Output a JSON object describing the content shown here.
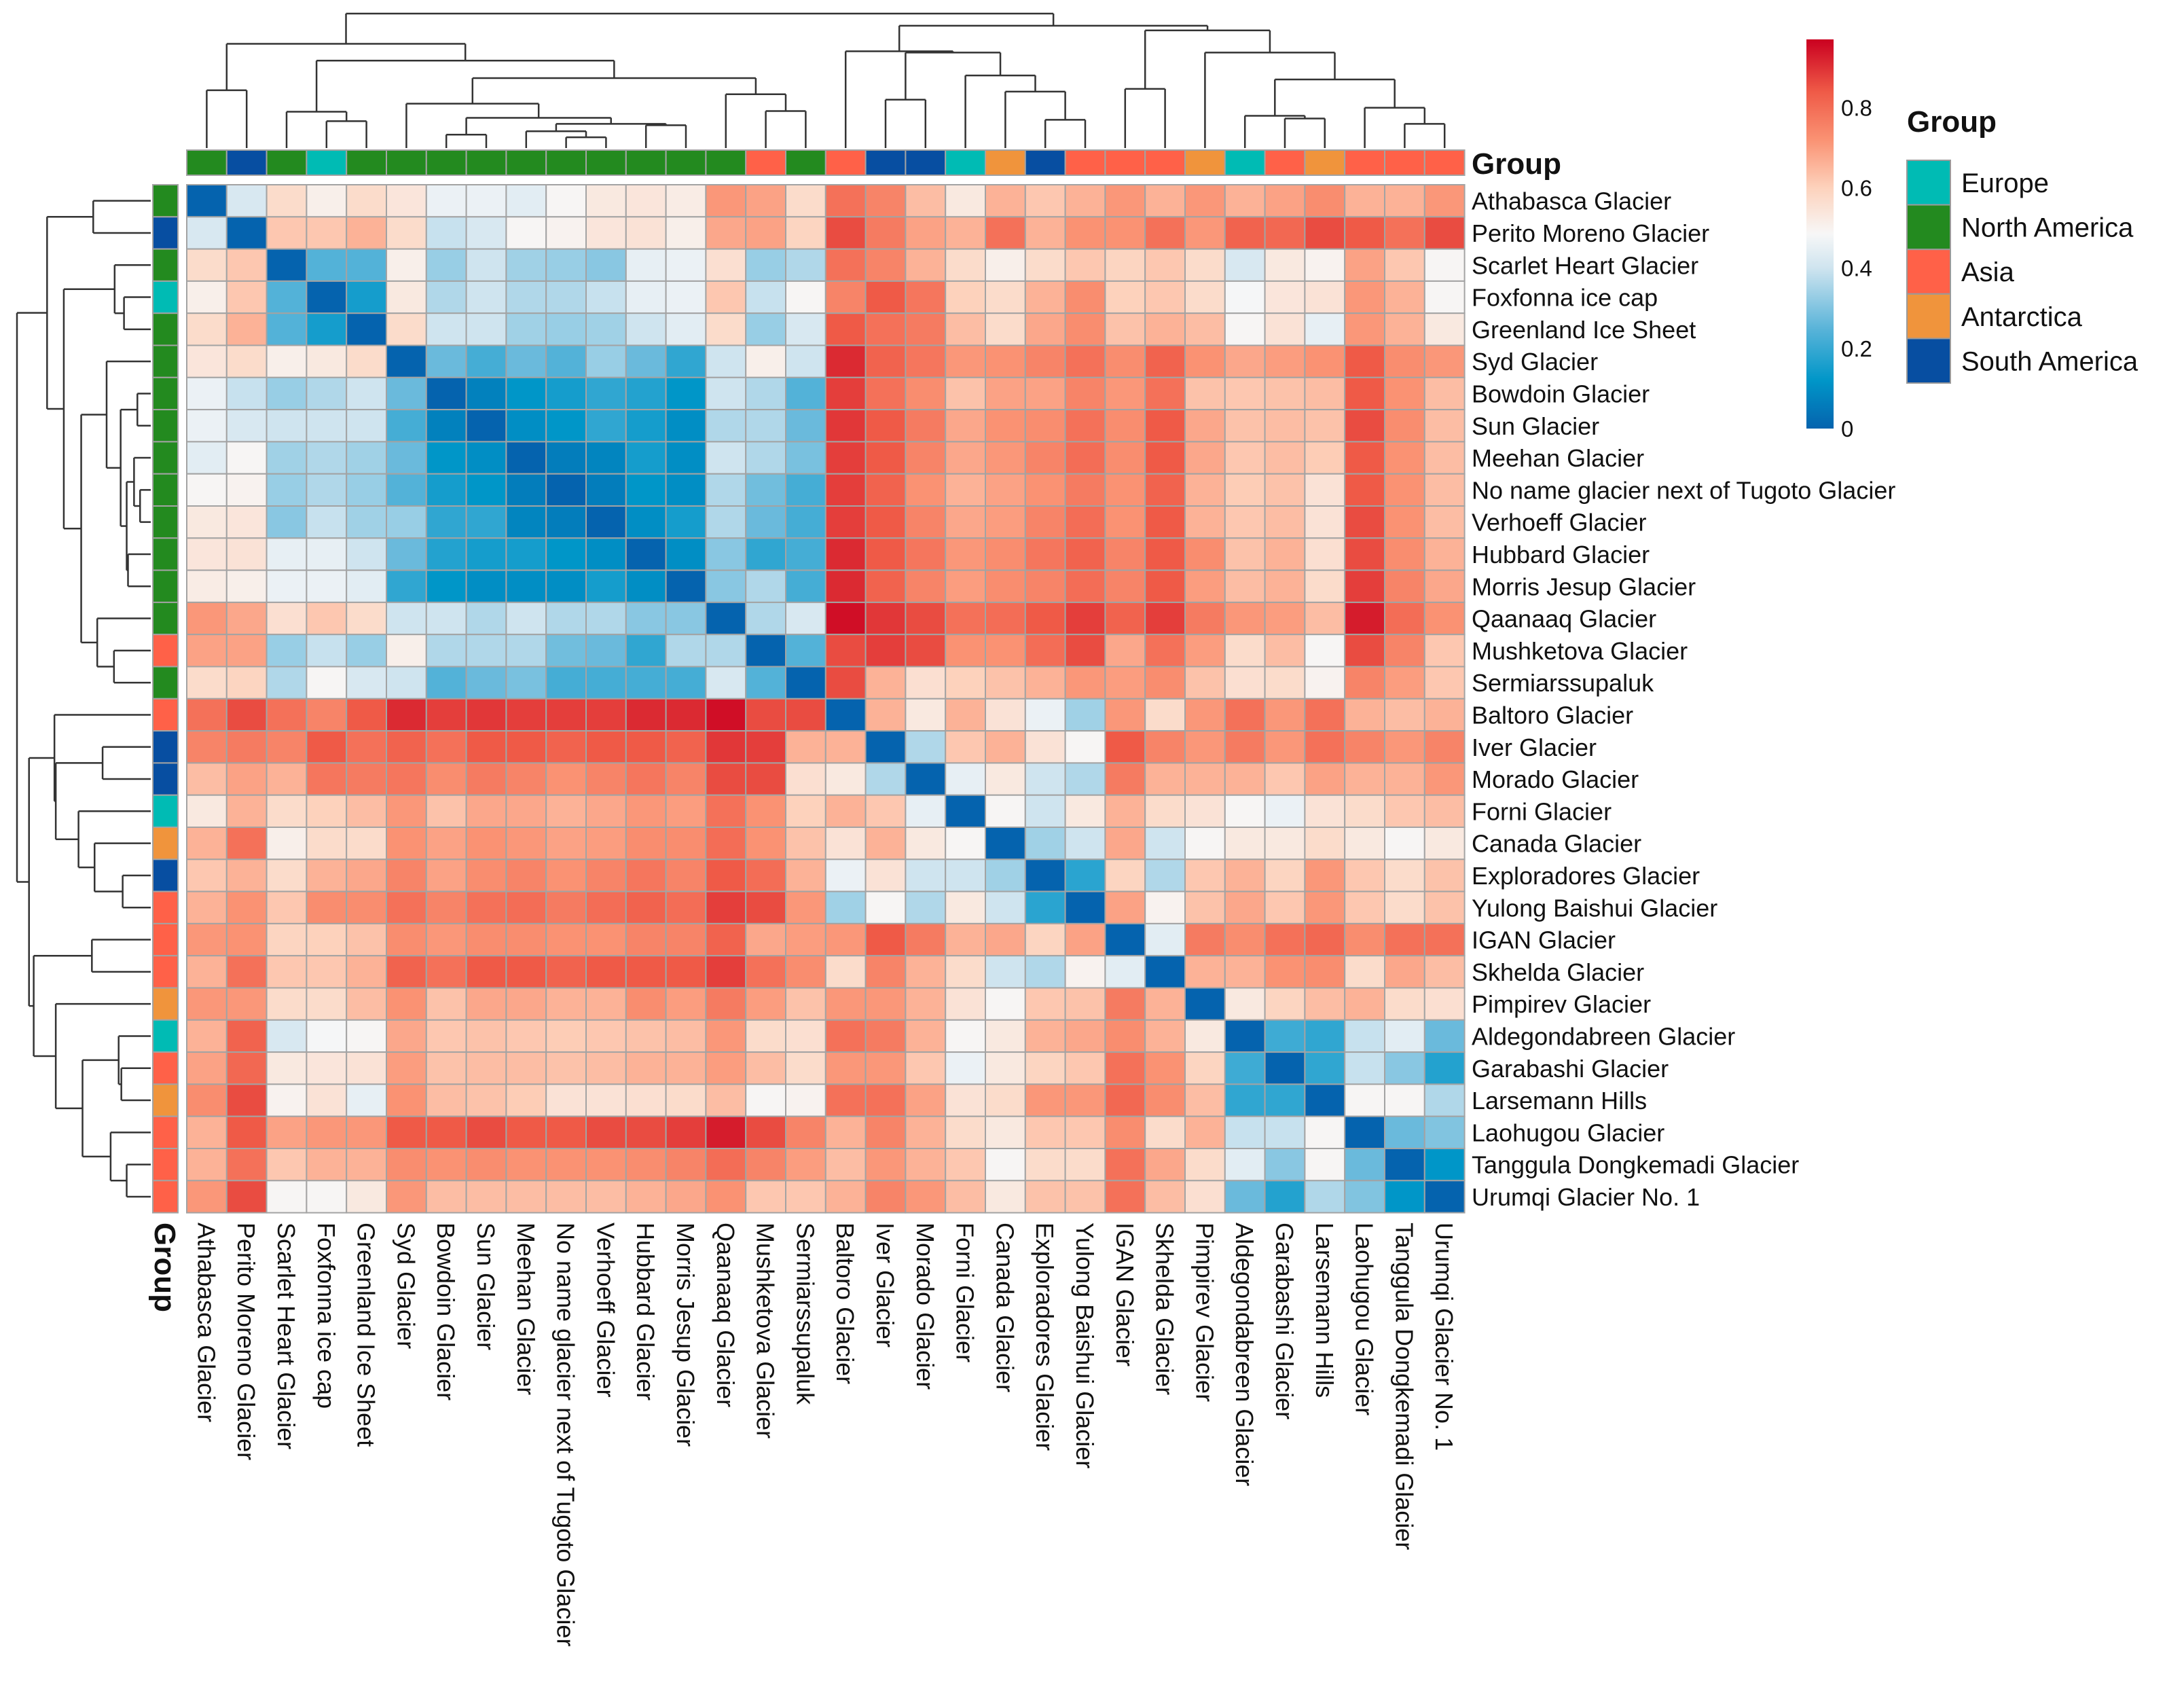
{
  "chart_data": {
    "type": "heatmap",
    "title": "",
    "annotation_title": "Group",
    "row_labels": [
      "Athabasca Glacier",
      "Perito Moreno Glacier",
      "Scarlet Heart Glacier",
      "Foxfonna ice cap",
      "Greenland Ice Sheet",
      "Syd Glacier",
      "Bowdoin Glacier",
      "Sun Glacier",
      "Meehan Glacier",
      "No name glacier next of Tugoto Glacier",
      "Verhoeff Glacier",
      "Hubbard Glacier",
      "Morris Jesup Glacier",
      "Qaanaaq Glacier",
      "Mushketova Glacier",
      "Sermiarssupaluk",
      "Baltoro Glacier",
      "Iver Glacier",
      "Morado Glacier",
      "Forni Glacier",
      "Canada Glacier",
      "Exploradores Glacier",
      "Yulong Baishui Glacier",
      "IGAN Glacier",
      "Skhelda Glacier",
      "Pimpirev Glacier",
      "Aldegondabreen Glacier",
      "Garabashi Glacier",
      "Larsemann Hills",
      "Laohugou Glacier",
      "Tanggula Dongkemadi Glacier",
      "Urumqi Glacier No. 1"
    ],
    "col_labels": [
      "Athabasca Glacier",
      "Perito Moreno Glacier",
      "Scarlet Heart Glacier",
      "Foxfonna ice cap",
      "Greenland Ice Sheet",
      "Syd Glacier",
      "Bowdoin Glacier",
      "Sun Glacier",
      "Meehan Glacier",
      "No name glacier next of Tugoto Glacier",
      "Verhoeff Glacier",
      "Hubbard Glacier",
      "Morris Jesup Glacier",
      "Qaanaaq Glacier",
      "Mushketova Glacier",
      "Sermiarssupaluk",
      "Baltoro Glacier",
      "Iver Glacier",
      "Morado Glacier",
      "Forni Glacier",
      "Canada Glacier",
      "Exploradores Glacier",
      "Yulong Baishui Glacier",
      "IGAN Glacier",
      "Skhelda Glacier",
      "Pimpirev Glacier",
      "Aldegondabreen Glacier",
      "Garabashi Glacier",
      "Larsemann Hills",
      "Laohugou Glacier",
      "Tanggula Dongkemadi Glacier",
      "Urumqi Glacier No. 1"
    ],
    "groups": [
      "North America",
      "South America",
      "North America",
      "Europe",
      "North America",
      "North America",
      "North America",
      "North America",
      "North America",
      "North America",
      "North America",
      "North America",
      "North America",
      "North America",
      "Asia",
      "North America",
      "Asia",
      "South America",
      "South America",
      "Europe",
      "Antarctica",
      "South America",
      "Asia",
      "Asia",
      "Asia",
      "Antarctica",
      "Europe",
      "Asia",
      "Antarctica",
      "Asia",
      "Asia",
      "Asia"
    ],
    "legend": [
      {
        "label": "Europe",
        "color": "#00bbb4"
      },
      {
        "label": "North America",
        "color": "#238a1f"
      },
      {
        "label": "Asia",
        "color": "#ff6148"
      },
      {
        "label": "Antarctica",
        "color": "#f0943c"
      },
      {
        "label": "South America",
        "color": "#074ea1"
      }
    ],
    "colorbar": {
      "ticks": [
        "0",
        "0.2",
        "0.4",
        "0.6",
        "0.8"
      ],
      "tick_values": [
        0,
        0.2,
        0.4,
        0.6,
        0.8
      ],
      "range": [
        0,
        0.97
      ],
      "colors": [
        "#0563ae",
        "#0096c8",
        "#5ab4d9",
        "#cfe4ef",
        "#f7f7f7",
        "#fdd2bc",
        "#fa9273",
        "#ef5a47",
        "#ca0020"
      ],
      "stops": [
        0,
        0.12,
        0.25,
        0.4,
        0.485,
        0.6,
        0.72,
        0.84,
        0.97
      ]
    },
    "dendrogram": {
      "rows": true,
      "cols": true
    },
    "values": [
      [
        0,
        0.42,
        0.57,
        0.51,
        0.57,
        0.54,
        0.46,
        0.46,
        0.44,
        0.49,
        0.53,
        0.54,
        0.52,
        0.71,
        0.69,
        0.57,
        0.79,
        0.75,
        0.64,
        0.53,
        0.66,
        0.62,
        0.66,
        0.71,
        0.66,
        0.71,
        0.66,
        0.69,
        0.73,
        0.66,
        0.66,
        0.71
      ],
      [
        0.42,
        0,
        0.62,
        0.62,
        0.66,
        0.57,
        0.39,
        0.42,
        0.49,
        0.5,
        0.54,
        0.55,
        0.51,
        0.68,
        0.69,
        0.59,
        0.86,
        0.77,
        0.69,
        0.66,
        0.79,
        0.66,
        0.72,
        0.72,
        0.79,
        0.71,
        0.82,
        0.81,
        0.86,
        0.84,
        0.79,
        0.86
      ],
      [
        0.57,
        0.62,
        0,
        0.24,
        0.24,
        0.51,
        0.33,
        0.4,
        0.34,
        0.33,
        0.31,
        0.45,
        0.46,
        0.56,
        0.33,
        0.36,
        0.79,
        0.75,
        0.66,
        0.57,
        0.51,
        0.57,
        0.62,
        0.59,
        0.62,
        0.57,
        0.42,
        0.53,
        0.5,
        0.69,
        0.62,
        0.49
      ],
      [
        0.51,
        0.62,
        0.24,
        0,
        0.15,
        0.53,
        0.36,
        0.4,
        0.36,
        0.36,
        0.39,
        0.45,
        0.46,
        0.62,
        0.39,
        0.49,
        0.75,
        0.84,
        0.78,
        0.6,
        0.57,
        0.66,
        0.73,
        0.6,
        0.62,
        0.57,
        0.48,
        0.54,
        0.55,
        0.71,
        0.66,
        0.49
      ],
      [
        0.57,
        0.66,
        0.24,
        0.15,
        0,
        0.57,
        0.4,
        0.4,
        0.34,
        0.33,
        0.34,
        0.4,
        0.44,
        0.57,
        0.33,
        0.42,
        0.84,
        0.79,
        0.77,
        0.64,
        0.57,
        0.68,
        0.73,
        0.63,
        0.66,
        0.64,
        0.49,
        0.55,
        0.45,
        0.71,
        0.66,
        0.53
      ],
      [
        0.54,
        0.57,
        0.51,
        0.53,
        0.57,
        0,
        0.27,
        0.22,
        0.27,
        0.24,
        0.33,
        0.27,
        0.19,
        0.4,
        0.51,
        0.4,
        0.91,
        0.82,
        0.78,
        0.71,
        0.72,
        0.75,
        0.79,
        0.73,
        0.82,
        0.72,
        0.68,
        0.7,
        0.72,
        0.84,
        0.73,
        0.71
      ],
      [
        0.46,
        0.39,
        0.33,
        0.36,
        0.4,
        0.27,
        0,
        0.07,
        0.12,
        0.15,
        0.19,
        0.17,
        0.12,
        0.4,
        0.36,
        0.24,
        0.88,
        0.79,
        0.73,
        0.63,
        0.69,
        0.69,
        0.75,
        0.71,
        0.79,
        0.63,
        0.62,
        0.63,
        0.64,
        0.84,
        0.72,
        0.64
      ],
      [
        0.46,
        0.42,
        0.4,
        0.4,
        0.4,
        0.22,
        0.07,
        0,
        0.1,
        0.12,
        0.19,
        0.15,
        0.1,
        0.36,
        0.36,
        0.27,
        0.89,
        0.84,
        0.77,
        0.68,
        0.72,
        0.73,
        0.79,
        0.73,
        0.84,
        0.68,
        0.63,
        0.64,
        0.63,
        0.86,
        0.73,
        0.64
      ],
      [
        0.44,
        0.49,
        0.34,
        0.36,
        0.34,
        0.27,
        0.12,
        0.1,
        0,
        0.06,
        0.08,
        0.15,
        0.1,
        0.4,
        0.36,
        0.29,
        0.88,
        0.84,
        0.75,
        0.68,
        0.71,
        0.75,
        0.8,
        0.73,
        0.84,
        0.68,
        0.62,
        0.64,
        0.61,
        0.84,
        0.72,
        0.64
      ],
      [
        0.49,
        0.5,
        0.33,
        0.36,
        0.33,
        0.24,
        0.15,
        0.12,
        0.06,
        0,
        0.06,
        0.12,
        0.1,
        0.36,
        0.28,
        0.22,
        0.88,
        0.82,
        0.72,
        0.66,
        0.69,
        0.72,
        0.77,
        0.72,
        0.82,
        0.66,
        0.61,
        0.63,
        0.55,
        0.84,
        0.72,
        0.64
      ],
      [
        0.53,
        0.54,
        0.31,
        0.39,
        0.34,
        0.33,
        0.19,
        0.19,
        0.08,
        0.06,
        0,
        0.1,
        0.15,
        0.36,
        0.27,
        0.22,
        0.88,
        0.84,
        0.75,
        0.68,
        0.7,
        0.75,
        0.8,
        0.72,
        0.84,
        0.66,
        0.62,
        0.64,
        0.55,
        0.86,
        0.72,
        0.64
      ],
      [
        0.54,
        0.55,
        0.45,
        0.45,
        0.4,
        0.27,
        0.17,
        0.15,
        0.15,
        0.12,
        0.1,
        0,
        0.1,
        0.31,
        0.19,
        0.22,
        0.91,
        0.84,
        0.78,
        0.71,
        0.73,
        0.78,
        0.82,
        0.75,
        0.84,
        0.73,
        0.63,
        0.66,
        0.56,
        0.86,
        0.73,
        0.66
      ],
      [
        0.52,
        0.51,
        0.46,
        0.46,
        0.44,
        0.19,
        0.12,
        0.1,
        0.1,
        0.1,
        0.15,
        0.1,
        0,
        0.31,
        0.36,
        0.22,
        0.91,
        0.82,
        0.75,
        0.7,
        0.73,
        0.75,
        0.8,
        0.75,
        0.84,
        0.7,
        0.64,
        0.66,
        0.57,
        0.88,
        0.75,
        0.68
      ],
      [
        0.71,
        0.68,
        0.56,
        0.62,
        0.57,
        0.4,
        0.4,
        0.36,
        0.4,
        0.36,
        0.36,
        0.31,
        0.31,
        0,
        0.36,
        0.42,
        0.95,
        0.89,
        0.86,
        0.79,
        0.8,
        0.84,
        0.88,
        0.82,
        0.88,
        0.77,
        0.71,
        0.7,
        0.64,
        0.93,
        0.8,
        0.72
      ],
      [
        0.69,
        0.69,
        0.33,
        0.39,
        0.33,
        0.51,
        0.36,
        0.36,
        0.36,
        0.28,
        0.27,
        0.19,
        0.36,
        0.36,
        0,
        0.24,
        0.86,
        0.88,
        0.86,
        0.72,
        0.72,
        0.8,
        0.86,
        0.68,
        0.79,
        0.7,
        0.57,
        0.64,
        0.49,
        0.86,
        0.75,
        0.62
      ],
      [
        0.57,
        0.59,
        0.36,
        0.49,
        0.42,
        0.4,
        0.24,
        0.27,
        0.29,
        0.22,
        0.22,
        0.22,
        0.22,
        0.42,
        0.24,
        0,
        0.86,
        0.66,
        0.56,
        0.6,
        0.63,
        0.66,
        0.71,
        0.7,
        0.73,
        0.63,
        0.56,
        0.57,
        0.5,
        0.75,
        0.7,
        0.62
      ],
      [
        0.79,
        0.86,
        0.79,
        0.75,
        0.84,
        0.91,
        0.88,
        0.89,
        0.88,
        0.88,
        0.88,
        0.91,
        0.91,
        0.95,
        0.86,
        0.86,
        0,
        0.66,
        0.53,
        0.66,
        0.55,
        0.46,
        0.34,
        0.71,
        0.57,
        0.71,
        0.79,
        0.71,
        0.79,
        0.66,
        0.64,
        0.66
      ],
      [
        0.75,
        0.77,
        0.75,
        0.84,
        0.79,
        0.82,
        0.79,
        0.84,
        0.84,
        0.82,
        0.84,
        0.84,
        0.82,
        0.89,
        0.88,
        0.66,
        0.66,
        0,
        0.36,
        0.62,
        0.66,
        0.55,
        0.49,
        0.84,
        0.75,
        0.71,
        0.77,
        0.71,
        0.79,
        0.75,
        0.71,
        0.75
      ],
      [
        0.64,
        0.69,
        0.66,
        0.78,
        0.77,
        0.78,
        0.73,
        0.77,
        0.75,
        0.72,
        0.75,
        0.78,
        0.75,
        0.86,
        0.86,
        0.56,
        0.53,
        0.36,
        0,
        0.45,
        0.53,
        0.4,
        0.36,
        0.77,
        0.66,
        0.66,
        0.66,
        0.62,
        0.69,
        0.66,
        0.66,
        0.71
      ],
      [
        0.53,
        0.66,
        0.57,
        0.6,
        0.64,
        0.71,
        0.63,
        0.68,
        0.68,
        0.66,
        0.68,
        0.71,
        0.7,
        0.79,
        0.72,
        0.6,
        0.66,
        0.62,
        0.45,
        0,
        0.49,
        0.4,
        0.53,
        0.66,
        0.57,
        0.55,
        0.49,
        0.46,
        0.55,
        0.57,
        0.62,
        0.64
      ],
      [
        0.66,
        0.79,
        0.51,
        0.57,
        0.57,
        0.72,
        0.69,
        0.72,
        0.71,
        0.69,
        0.7,
        0.73,
        0.73,
        0.8,
        0.72,
        0.63,
        0.55,
        0.66,
        0.53,
        0.49,
        0,
        0.34,
        0.4,
        0.68,
        0.4,
        0.49,
        0.53,
        0.53,
        0.57,
        0.53,
        0.49,
        0.53
      ],
      [
        0.62,
        0.66,
        0.57,
        0.66,
        0.68,
        0.75,
        0.69,
        0.73,
        0.75,
        0.72,
        0.75,
        0.78,
        0.75,
        0.84,
        0.8,
        0.66,
        0.46,
        0.55,
        0.4,
        0.4,
        0.34,
        0,
        0.18,
        0.59,
        0.36,
        0.62,
        0.66,
        0.59,
        0.71,
        0.62,
        0.57,
        0.63
      ],
      [
        0.66,
        0.72,
        0.62,
        0.73,
        0.73,
        0.79,
        0.75,
        0.79,
        0.8,
        0.77,
        0.8,
        0.82,
        0.8,
        0.88,
        0.86,
        0.71,
        0.34,
        0.49,
        0.36,
        0.53,
        0.4,
        0.18,
        0,
        0.69,
        0.5,
        0.63,
        0.68,
        0.62,
        0.71,
        0.62,
        0.57,
        0.63
      ],
      [
        0.71,
        0.72,
        0.59,
        0.6,
        0.63,
        0.73,
        0.71,
        0.73,
        0.73,
        0.72,
        0.72,
        0.75,
        0.75,
        0.82,
        0.68,
        0.7,
        0.71,
        0.84,
        0.77,
        0.66,
        0.68,
        0.59,
        0.69,
        0,
        0.44,
        0.77,
        0.73,
        0.79,
        0.81,
        0.73,
        0.79,
        0.79
      ],
      [
        0.66,
        0.79,
        0.62,
        0.62,
        0.66,
        0.82,
        0.79,
        0.84,
        0.84,
        0.82,
        0.84,
        0.84,
        0.84,
        0.88,
        0.79,
        0.73,
        0.57,
        0.75,
        0.66,
        0.57,
        0.4,
        0.36,
        0.5,
        0.44,
        0,
        0.66,
        0.66,
        0.72,
        0.73,
        0.57,
        0.68,
        0.64
      ],
      [
        0.71,
        0.71,
        0.57,
        0.57,
        0.64,
        0.72,
        0.63,
        0.68,
        0.68,
        0.66,
        0.66,
        0.73,
        0.7,
        0.77,
        0.7,
        0.63,
        0.71,
        0.71,
        0.66,
        0.55,
        0.49,
        0.62,
        0.63,
        0.77,
        0.66,
        0,
        0.53,
        0.59,
        0.64,
        0.66,
        0.57,
        0.56
      ],
      [
        0.66,
        0.82,
        0.42,
        0.48,
        0.49,
        0.68,
        0.62,
        0.63,
        0.62,
        0.61,
        0.62,
        0.63,
        0.64,
        0.71,
        0.57,
        0.56,
        0.79,
        0.77,
        0.66,
        0.49,
        0.53,
        0.66,
        0.68,
        0.73,
        0.66,
        0.53,
        0,
        0.21,
        0.19,
        0.39,
        0.44,
        0.27
      ],
      [
        0.69,
        0.81,
        0.53,
        0.54,
        0.55,
        0.7,
        0.63,
        0.64,
        0.64,
        0.63,
        0.64,
        0.66,
        0.66,
        0.7,
        0.64,
        0.57,
        0.71,
        0.71,
        0.62,
        0.46,
        0.53,
        0.59,
        0.62,
        0.79,
        0.72,
        0.59,
        0.21,
        0,
        0.19,
        0.39,
        0.31,
        0.17
      ],
      [
        0.73,
        0.86,
        0.5,
        0.55,
        0.45,
        0.72,
        0.64,
        0.63,
        0.61,
        0.55,
        0.55,
        0.56,
        0.57,
        0.64,
        0.49,
        0.5,
        0.79,
        0.79,
        0.69,
        0.55,
        0.57,
        0.71,
        0.71,
        0.81,
        0.73,
        0.64,
        0.19,
        0.19,
        0,
        0.49,
        0.49,
        0.36
      ],
      [
        0.66,
        0.84,
        0.69,
        0.71,
        0.71,
        0.84,
        0.84,
        0.86,
        0.84,
        0.84,
        0.86,
        0.86,
        0.88,
        0.93,
        0.86,
        0.75,
        0.66,
        0.75,
        0.66,
        0.57,
        0.53,
        0.62,
        0.62,
        0.73,
        0.57,
        0.66,
        0.39,
        0.39,
        0.49,
        0,
        0.27,
        0.3
      ],
      [
        0.66,
        0.79,
        0.62,
        0.66,
        0.66,
        0.73,
        0.72,
        0.73,
        0.72,
        0.72,
        0.72,
        0.73,
        0.75,
        0.8,
        0.75,
        0.7,
        0.64,
        0.71,
        0.66,
        0.62,
        0.49,
        0.57,
        0.57,
        0.79,
        0.68,
        0.57,
        0.44,
        0.31,
        0.49,
        0.27,
        0,
        0.12
      ],
      [
        0.71,
        0.86,
        0.49,
        0.49,
        0.53,
        0.71,
        0.64,
        0.64,
        0.64,
        0.64,
        0.64,
        0.66,
        0.68,
        0.72,
        0.62,
        0.62,
        0.66,
        0.75,
        0.71,
        0.64,
        0.53,
        0.63,
        0.63,
        0.79,
        0.64,
        0.56,
        0.27,
        0.17,
        0.36,
        0.3,
        0.12,
        0
      ]
    ]
  }
}
